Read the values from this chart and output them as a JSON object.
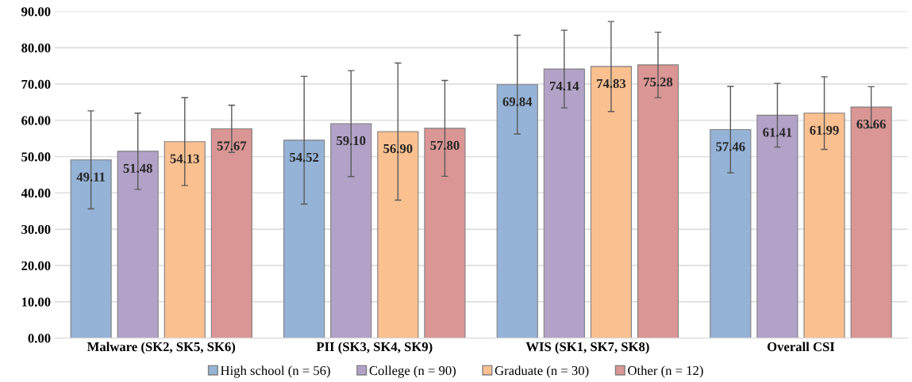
{
  "chart_data": {
    "type": "bar",
    "categories": [
      "Malware (SK2, SK5, SK6)",
      "PII (SK3, SK4, SK9)",
      "WIS (SK1, SK7, SK8)",
      "Overall CSI"
    ],
    "series": [
      {
        "name": "High school (n = 56)",
        "color": "#95b3d7",
        "values": [
          49.11,
          54.52,
          69.84,
          57.46
        ],
        "value_labels": [
          "49.11",
          "54.52",
          "69.84",
          "57.46"
        ],
        "errors": [
          13.5,
          17.6,
          13.6,
          11.9
        ]
      },
      {
        "name": "College (n = 90)",
        "color": "#b3a2c7",
        "values": [
          51.48,
          59.1,
          74.14,
          61.41
        ],
        "value_labels": [
          "51.48",
          "59.10",
          "74.14",
          "61.41"
        ],
        "errors": [
          10.5,
          14.6,
          10.7,
          8.8
        ]
      },
      {
        "name": "Graduate (n = 30)",
        "color": "#fac090",
        "values": [
          54.13,
          56.9,
          74.83,
          61.99
        ],
        "value_labels": [
          "54.13",
          "56.90",
          "74.83",
          "61.99"
        ],
        "errors": [
          12.1,
          18.9,
          12.4,
          10.0
        ]
      },
      {
        "name": "Other (n = 12)",
        "color": "#d99694",
        "values": [
          57.67,
          57.8,
          75.28,
          63.66
        ],
        "value_labels": [
          "57.67",
          "57.80",
          "75.28",
          "63.66"
        ],
        "errors": [
          6.5,
          13.2,
          9.0,
          5.6
        ]
      }
    ],
    "ylim": [
      0,
      90
    ],
    "yticks": [
      {
        "value": 0,
        "label": "0.00"
      },
      {
        "value": 10,
        "label": "10.00"
      },
      {
        "value": 20,
        "label": "20.00"
      },
      {
        "value": 30,
        "label": "30.00"
      },
      {
        "value": 40,
        "label": "40.00"
      },
      {
        "value": 50,
        "label": "50.00"
      },
      {
        "value": 60,
        "label": "60.00"
      },
      {
        "value": 70,
        "label": "70.00"
      },
      {
        "value": 80,
        "label": "80.00"
      },
      {
        "value": 90,
        "label": "90.00"
      }
    ],
    "grid": "y",
    "legend": "bottom"
  }
}
